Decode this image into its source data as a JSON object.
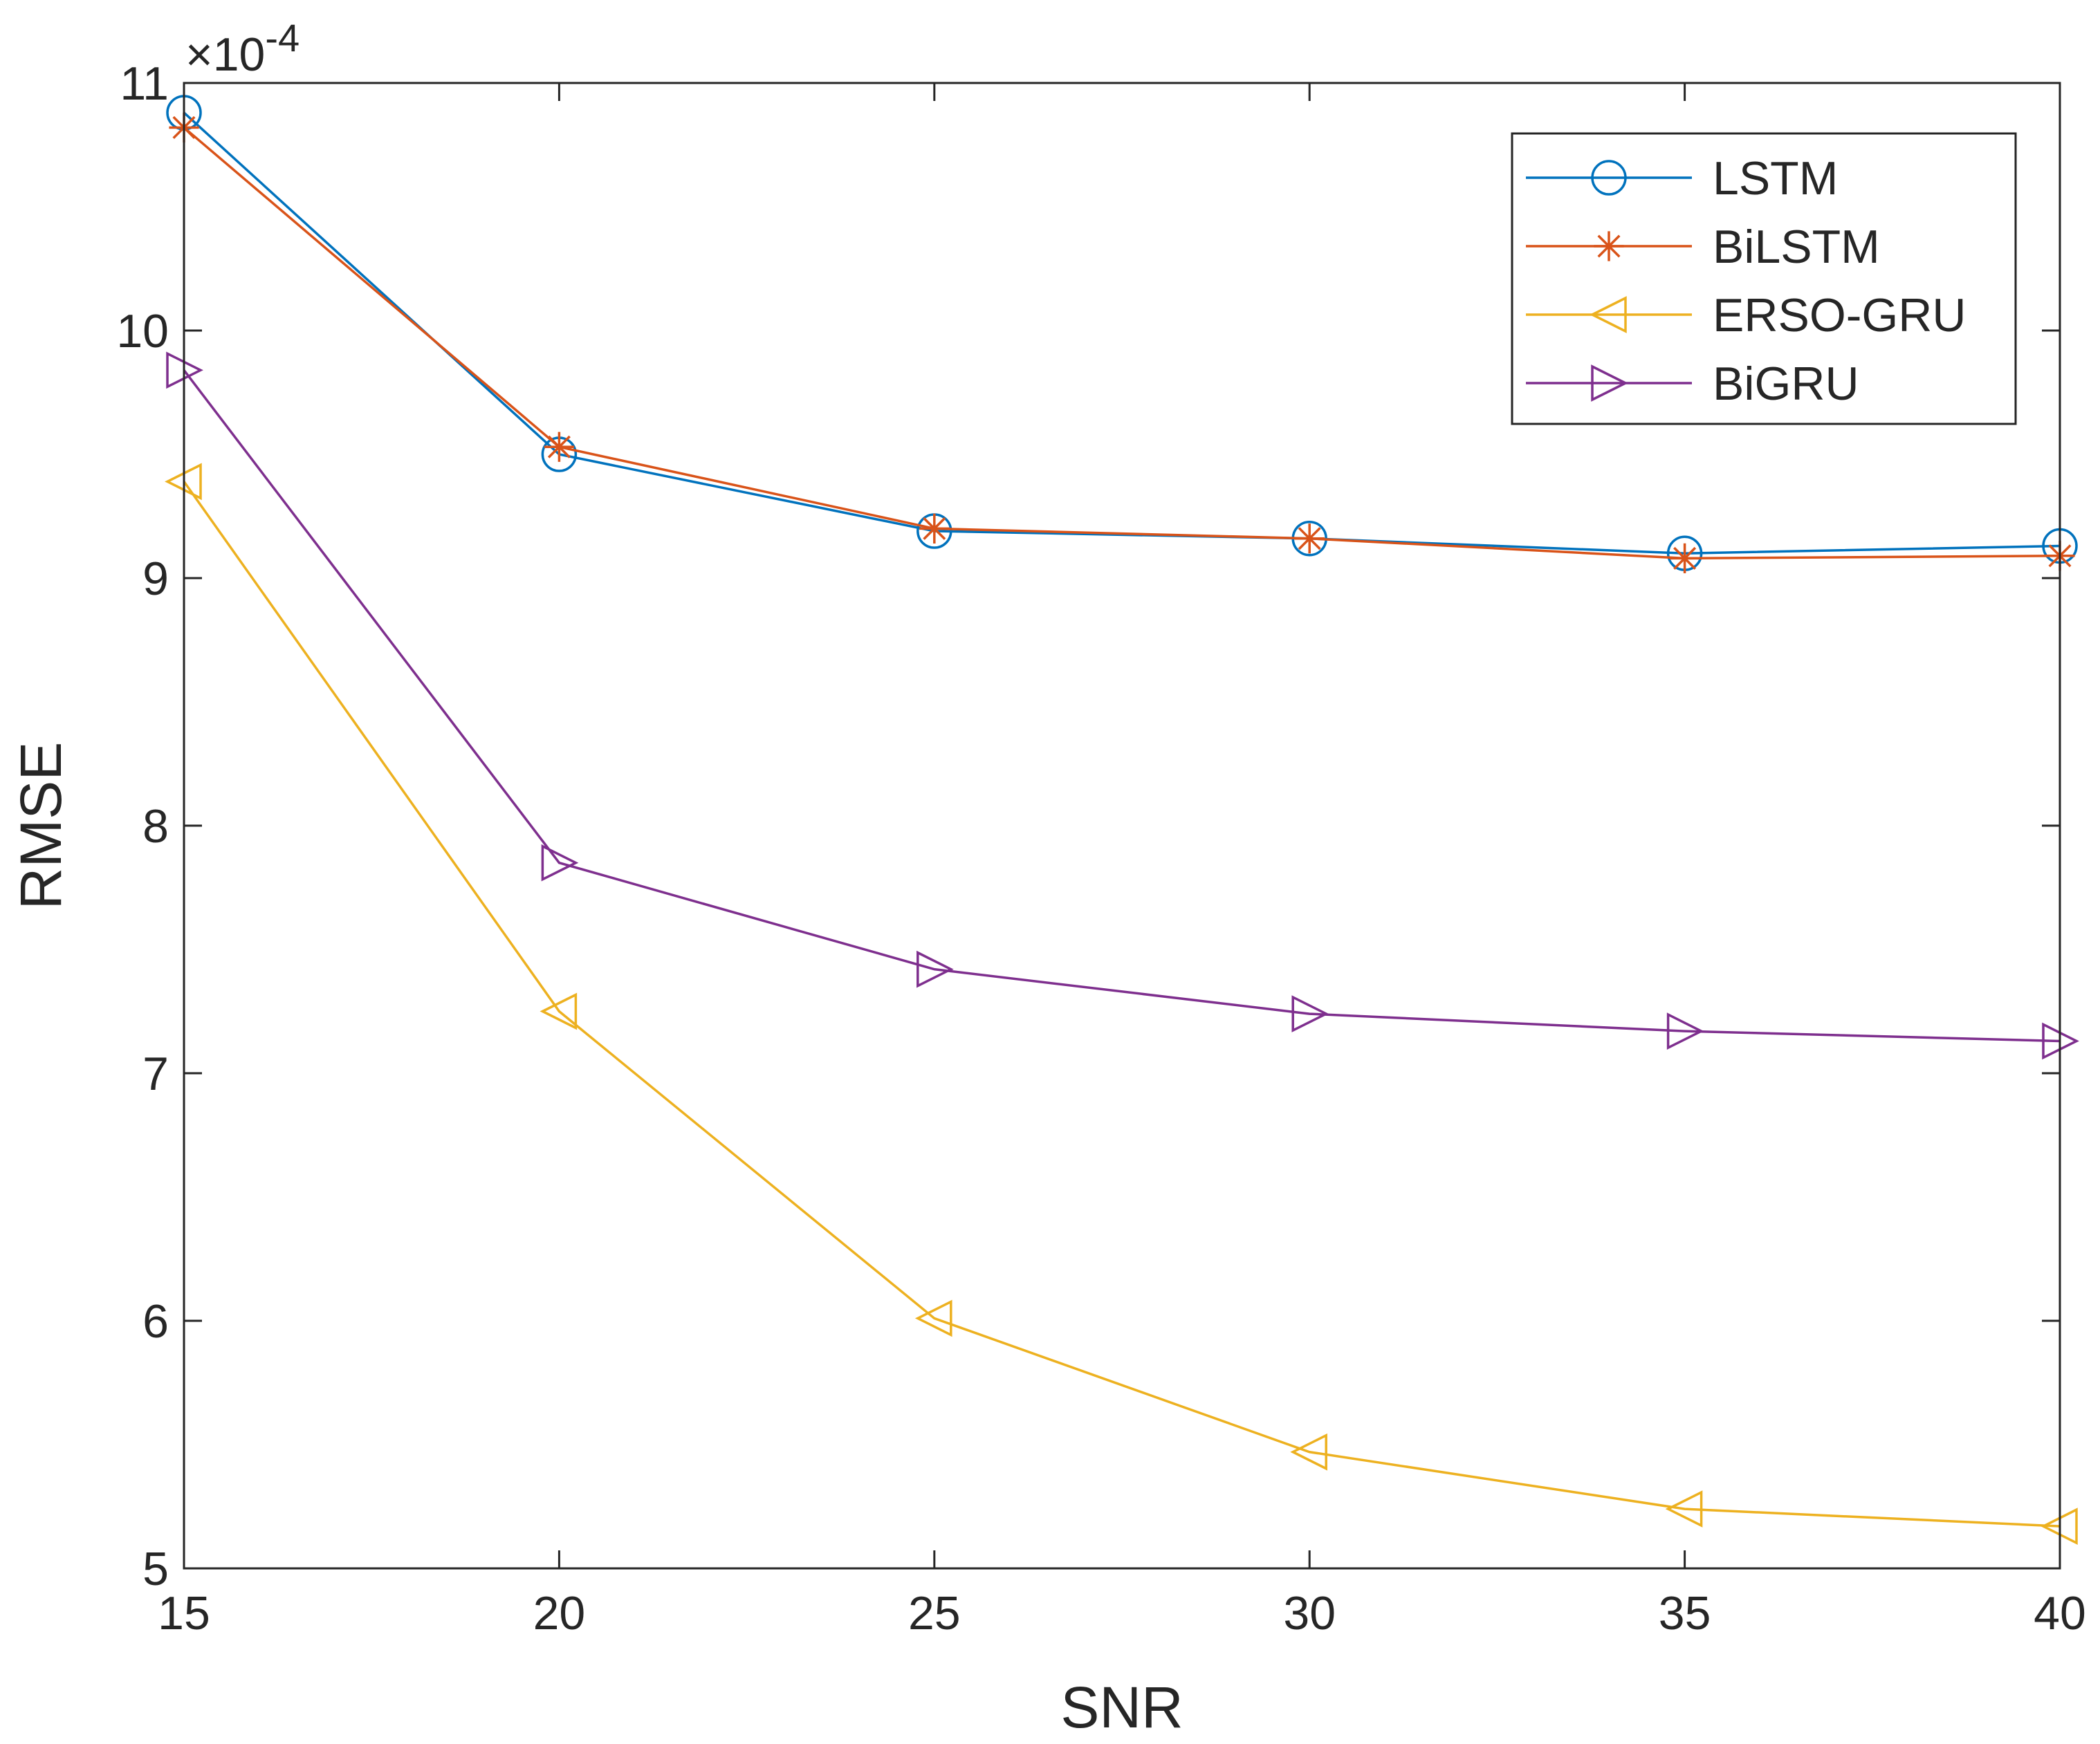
{
  "chart_data": {
    "type": "line",
    "title": "",
    "xlabel": "SNR",
    "ylabel": "RMSE",
    "y_multiplier_label": "×10",
    "y_multiplier_exponent": "-4",
    "x": [
      15,
      20,
      25,
      30,
      35,
      40
    ],
    "xlim": [
      15,
      40
    ],
    "ylim": [
      5,
      11
    ],
    "xticks": [
      15,
      20,
      25,
      30,
      35,
      40
    ],
    "yticks": [
      5,
      6,
      7,
      8,
      9,
      10,
      11
    ],
    "grid": false,
    "legend_position": "top-right",
    "series": [
      {
        "name": "LSTM",
        "color": "#0072BD",
        "marker": "circle",
        "values": [
          10.88,
          9.5,
          9.19,
          9.16,
          9.1,
          9.13
        ]
      },
      {
        "name": "BiLSTM",
        "color": "#D95319",
        "marker": "asterisk",
        "values": [
          10.82,
          9.53,
          9.2,
          9.16,
          9.08,
          9.09
        ]
      },
      {
        "name": "ERSO-GRU",
        "color": "#EDB120",
        "marker": "triangle-left",
        "values": [
          9.39,
          7.25,
          6.01,
          5.47,
          5.24,
          5.17
        ]
      },
      {
        "name": "BiGRU",
        "color": "#7E2F8E",
        "marker": "triangle-right",
        "values": [
          9.84,
          7.85,
          7.42,
          7.24,
          7.17,
          7.13
        ]
      }
    ]
  }
}
